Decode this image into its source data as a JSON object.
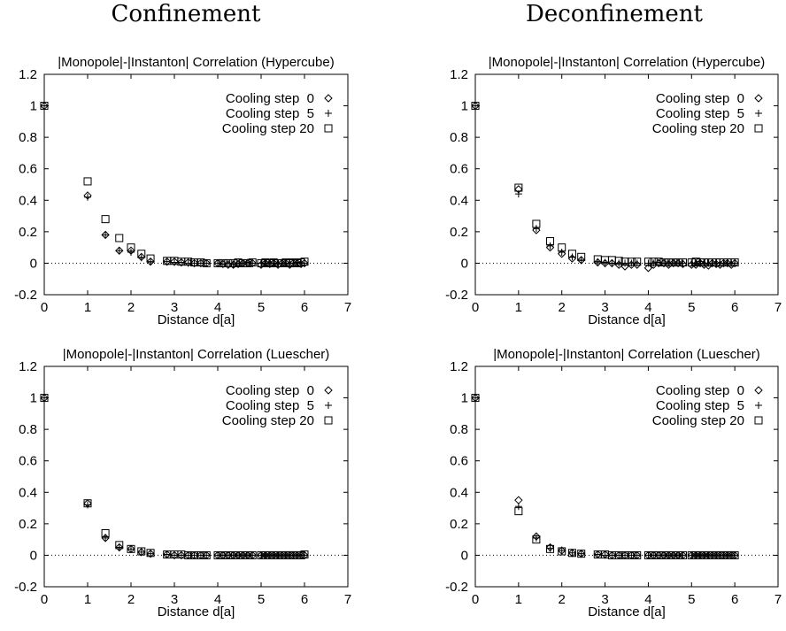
{
  "column_titles": [
    "Confinement",
    "Deconfinement"
  ],
  "chart_data": [
    {
      "type": "scatter",
      "title": "|Monopole|-|Instanton| Correlation (Hypercube)",
      "xlabel": "Distance d[a]",
      "ylabel": "",
      "xlim": [
        0,
        7
      ],
      "ylim": [
        -0.2,
        1.2
      ],
      "xticks": [
        0,
        1,
        2,
        3,
        4,
        5,
        6,
        7
      ],
      "yticks": [
        -0.2,
        0,
        0.2,
        0.4,
        0.6,
        0.8,
        1,
        1.2
      ],
      "grid": false,
      "legend_position": "top-right",
      "zero_line": true,
      "series": [
        {
          "name": "Cooling step  0",
          "marker": "diamond",
          "x": [
            0,
            1,
            1.41,
            1.73,
            2,
            2.24,
            2.45,
            2.83,
            3,
            3.16,
            3.32,
            3.46,
            3.61,
            3.74,
            4,
            4.12,
            4.24,
            4.36,
            4.47,
            4.58,
            4.69,
            4.8,
            5,
            5.1,
            5.2,
            5.29,
            5.39,
            5.48,
            5.57,
            5.66,
            5.74,
            5.83,
            5.92,
            6
          ],
          "y": [
            1.0,
            0.43,
            0.18,
            0.08,
            0.08,
            0.04,
            0.01,
            0.01,
            0.01,
            0.005,
            0.005,
            0.0,
            0.0,
            0.0,
            0.0,
            -0.005,
            -0.01,
            -0.01,
            -0.005,
            0.0,
            0.0,
            0.0,
            -0.01,
            0.0,
            -0.005,
            0.0,
            -0.01,
            0.0,
            0.0,
            -0.01,
            0.0,
            0.0,
            -0.005,
            0.0
          ]
        },
        {
          "name": "Cooling step  5",
          "marker": "plus",
          "x": [
            0,
            1,
            1.41,
            1.73,
            2,
            2.24,
            2.45,
            2.83,
            3,
            3.16,
            3.32,
            3.46,
            3.61,
            3.74,
            4,
            4.12,
            4.24,
            4.36,
            4.47,
            4.58,
            4.69,
            4.8,
            5,
            5.1,
            5.2,
            5.29,
            5.39,
            5.48,
            5.57,
            5.66,
            5.74,
            5.83,
            5.92,
            6
          ],
          "y": [
            1.0,
            0.42,
            0.18,
            0.08,
            0.07,
            0.035,
            0.01,
            0.01,
            0.005,
            0.005,
            0.0,
            0.0,
            0.0,
            0.0,
            0.0,
            -0.005,
            0.0,
            -0.005,
            0.0,
            0.0,
            0.005,
            0.0,
            0.0,
            0.0,
            0.0,
            0.0,
            0.0,
            0.0,
            0.0,
            0.0,
            0.0,
            0.005,
            0.0,
            0.0
          ]
        },
        {
          "name": "Cooling step 20",
          "marker": "square",
          "x": [
            0,
            1,
            1.41,
            1.73,
            2,
            2.24,
            2.45,
            2.83,
            3,
            3.16,
            3.32,
            3.46,
            3.61,
            3.74,
            4,
            4.12,
            4.24,
            4.36,
            4.47,
            4.58,
            4.69,
            4.8,
            5,
            5.1,
            5.2,
            5.29,
            5.39,
            5.48,
            5.57,
            5.66,
            5.74,
            5.83,
            5.92,
            6
          ],
          "y": [
            1.0,
            0.52,
            0.28,
            0.16,
            0.1,
            0.06,
            0.03,
            0.015,
            0.015,
            0.01,
            0.01,
            0.005,
            0.005,
            0.0,
            0.0,
            0.0,
            0.0,
            0.0,
            0.005,
            0.0,
            0.0,
            0.005,
            0.0,
            0.005,
            0.0,
            0.005,
            0.0,
            0.0,
            0.005,
            0.0,
            0.005,
            0.0,
            0.005,
            0.01
          ]
        }
      ]
    },
    {
      "type": "scatter",
      "title": "|Monopole|-|Instanton| Correlation (Hypercube)",
      "xlabel": "Distance d[a]",
      "ylabel": "",
      "xlim": [
        0,
        7
      ],
      "ylim": [
        -0.2,
        1.2
      ],
      "xticks": [
        0,
        1,
        2,
        3,
        4,
        5,
        6,
        7
      ],
      "yticks": [
        -0.2,
        0,
        0.2,
        0.4,
        0.6,
        0.8,
        1,
        1.2
      ],
      "grid": false,
      "legend_position": "top-right",
      "zero_line": true,
      "series": [
        {
          "name": "Cooling step  0",
          "marker": "diamond",
          "x": [
            0,
            1,
            1.41,
            1.73,
            2,
            2.24,
            2.45,
            2.83,
            3,
            3.16,
            3.32,
            3.46,
            3.61,
            3.74,
            4,
            4.12,
            4.24,
            4.36,
            4.47,
            4.58,
            4.69,
            4.8,
            5,
            5.1,
            5.2,
            5.29,
            5.39,
            5.48,
            5.57,
            5.66,
            5.74,
            5.83,
            5.92,
            6
          ],
          "y": [
            1.0,
            0.47,
            0.21,
            0.1,
            0.06,
            0.03,
            0.02,
            0.005,
            0.0,
            0.0,
            -0.01,
            -0.02,
            -0.01,
            -0.01,
            -0.03,
            -0.01,
            0.0,
            0.0,
            -0.01,
            0.0,
            0.0,
            -0.005,
            -0.01,
            -0.01,
            0.0,
            -0.01,
            -0.015,
            0.0,
            -0.005,
            -0.01,
            0.0,
            0.0,
            -0.01,
            0.0
          ]
        },
        {
          "name": "Cooling step  5",
          "marker": "plus",
          "x": [
            0,
            1,
            1.41,
            1.73,
            2,
            2.24,
            2.45,
            2.83,
            3,
            3.16,
            3.32,
            3.46,
            3.61,
            3.74,
            4,
            4.12,
            4.24,
            4.36,
            4.47,
            4.58,
            4.69,
            4.8,
            5,
            5.1,
            5.2,
            5.29,
            5.39,
            5.48,
            5.57,
            5.66,
            5.74,
            5.83,
            5.92,
            6
          ],
          "y": [
            1.0,
            0.44,
            0.22,
            0.11,
            0.07,
            0.04,
            0.02,
            0.01,
            0.005,
            0.0,
            0.0,
            0.0,
            0.0,
            0.0,
            0.0,
            0.0,
            0.005,
            0.0,
            0.0,
            0.0,
            0.0,
            0.0,
            0.0,
            0.0,
            0.01,
            0.0,
            0.0,
            0.0,
            0.0,
            0.0,
            0.0,
            0.0,
            0.0,
            0.0
          ]
        },
        {
          "name": "Cooling step 20",
          "marker": "square",
          "x": [
            0,
            1,
            1.41,
            1.73,
            2,
            2.24,
            2.45,
            2.83,
            3,
            3.16,
            3.32,
            3.46,
            3.61,
            3.74,
            4,
            4.12,
            4.24,
            4.36,
            4.47,
            4.58,
            4.69,
            4.8,
            5,
            5.1,
            5.2,
            5.29,
            5.39,
            5.48,
            5.57,
            5.66,
            5.74,
            5.83,
            5.92,
            6
          ],
          "y": [
            1.0,
            0.48,
            0.25,
            0.14,
            0.1,
            0.06,
            0.04,
            0.025,
            0.02,
            0.02,
            0.015,
            0.01,
            0.01,
            0.01,
            0.01,
            0.01,
            0.01,
            0.005,
            0.005,
            0.005,
            0.005,
            0.005,
            0.005,
            0.01,
            0.005,
            0.005,
            0.005,
            0.005,
            0.005,
            0.005,
            0.005,
            0.005,
            0.005,
            0.005
          ]
        }
      ]
    },
    {
      "type": "scatter",
      "title": "|Monopole|-|Instanton| Correlation (Luescher)",
      "xlabel": "Distance d[a]",
      "ylabel": "",
      "xlim": [
        0,
        7
      ],
      "ylim": [
        -0.2,
        1.2
      ],
      "xticks": [
        0,
        1,
        2,
        3,
        4,
        5,
        6,
        7
      ],
      "yticks": [
        -0.2,
        0,
        0.2,
        0.4,
        0.6,
        0.8,
        1,
        1.2
      ],
      "grid": false,
      "legend_position": "top-right",
      "zero_line": true,
      "series": [
        {
          "name": "Cooling step  0",
          "marker": "diamond",
          "x": [
            0,
            1,
            1.41,
            1.73,
            2,
            2.24,
            2.45,
            2.83,
            3,
            3.16,
            3.32,
            3.46,
            3.61,
            3.74,
            4,
            4.12,
            4.24,
            4.36,
            4.47,
            4.58,
            4.69,
            4.8,
            5,
            5.1,
            5.2,
            5.29,
            5.39,
            5.48,
            5.57,
            5.66,
            5.74,
            5.83,
            5.92,
            6
          ],
          "y": [
            1.0,
            0.33,
            0.11,
            0.05,
            0.04,
            0.02,
            0.01,
            0.005,
            0.0,
            0.0,
            0.0,
            0.0,
            0.0,
            0.0,
            0.0,
            0.0,
            0.0,
            0.0,
            0.0,
            0.0,
            0.0,
            0.0,
            0.0,
            0.0,
            0.0,
            0.0,
            0.0,
            0.0,
            0.0,
            0.0,
            0.0,
            0.0,
            0.0,
            0.0
          ]
        },
        {
          "name": "Cooling step  5",
          "marker": "plus",
          "x": [
            0,
            1,
            1.41,
            1.73,
            2,
            2.24,
            2.45,
            2.83,
            3,
            3.16,
            3.32,
            3.46,
            3.61,
            3.74,
            4,
            4.12,
            4.24,
            4.36,
            4.47,
            4.58,
            4.69,
            4.8,
            5,
            5.1,
            5.2,
            5.29,
            5.39,
            5.48,
            5.57,
            5.66,
            5.74,
            5.83,
            5.92,
            6
          ],
          "y": [
            1.0,
            0.32,
            0.11,
            0.05,
            0.04,
            0.02,
            0.01,
            0.005,
            0.0,
            0.0,
            0.0,
            0.0,
            0.0,
            0.0,
            0.0,
            0.0,
            0.0,
            0.0,
            0.0,
            0.0,
            0.0,
            0.0,
            0.0,
            0.0,
            0.0,
            0.0,
            0.0,
            0.0,
            0.0,
            0.0,
            0.0,
            0.0,
            0.0,
            0.0
          ]
        },
        {
          "name": "Cooling step 20",
          "marker": "square",
          "x": [
            0,
            1,
            1.41,
            1.73,
            2,
            2.24,
            2.45,
            2.83,
            3,
            3.16,
            3.32,
            3.46,
            3.61,
            3.74,
            4,
            4.12,
            4.24,
            4.36,
            4.47,
            4.58,
            4.69,
            4.8,
            5,
            5.1,
            5.2,
            5.29,
            5.39,
            5.48,
            5.57,
            5.66,
            5.74,
            5.83,
            5.92,
            6
          ],
          "y": [
            1.0,
            0.33,
            0.14,
            0.065,
            0.04,
            0.025,
            0.015,
            0.005,
            0.005,
            0.005,
            0.0,
            0.0,
            0.0,
            0.0,
            0.0,
            0.0,
            0.0,
            0.0,
            0.0,
            0.0,
            0.0,
            0.0,
            0.0,
            0.0,
            0.0,
            0.0,
            0.0,
            0.0,
            0.0,
            0.0,
            0.0,
            0.0,
            0.0,
            0.005
          ]
        }
      ]
    },
    {
      "type": "scatter",
      "title": "|Monopole|-|Instanton| Correlation (Luescher)",
      "xlabel": "Distance d[a]",
      "ylabel": "",
      "xlim": [
        0,
        7
      ],
      "ylim": [
        -0.2,
        1.2
      ],
      "xticks": [
        0,
        1,
        2,
        3,
        4,
        5,
        6,
        7
      ],
      "yticks": [
        -0.2,
        0,
        0.2,
        0.4,
        0.6,
        0.8,
        1,
        1.2
      ],
      "grid": false,
      "legend_position": "top-right",
      "zero_line": true,
      "series": [
        {
          "name": "Cooling step  0",
          "marker": "diamond",
          "x": [
            0,
            1,
            1.41,
            1.73,
            2,
            2.24,
            2.45,
            2.83,
            3,
            3.16,
            3.32,
            3.46,
            3.61,
            3.74,
            4,
            4.12,
            4.24,
            4.36,
            4.47,
            4.58,
            4.69,
            4.8,
            5,
            5.1,
            5.2,
            5.29,
            5.39,
            5.48,
            5.57,
            5.66,
            5.74,
            5.83,
            5.92,
            6
          ],
          "y": [
            1.0,
            0.35,
            0.12,
            0.05,
            0.03,
            0.015,
            0.01,
            0.005,
            0.005,
            0.0,
            0.0,
            0.0,
            0.0,
            0.0,
            0.0,
            0.0,
            0.0,
            0.0,
            0.0,
            0.0,
            0.0,
            0.0,
            0.0,
            0.0,
            0.0,
            0.0,
            0.0,
            0.0,
            0.0,
            0.0,
            0.0,
            0.0,
            0.0,
            0.0
          ]
        },
        {
          "name": "Cooling step  5",
          "marker": "plus",
          "x": [
            0,
            1,
            1.41,
            1.73,
            2,
            2.24,
            2.45,
            2.83,
            3,
            3.16,
            3.32,
            3.46,
            3.61,
            3.74,
            4,
            4.12,
            4.24,
            4.36,
            4.47,
            4.58,
            4.69,
            4.8,
            5,
            5.1,
            5.2,
            5.29,
            5.39,
            5.48,
            5.57,
            5.66,
            5.74,
            5.83,
            5.92,
            6
          ],
          "y": [
            1.0,
            0.31,
            0.11,
            0.045,
            0.03,
            0.015,
            0.01,
            0.005,
            0.0,
            0.0,
            0.0,
            0.0,
            0.0,
            0.0,
            0.0,
            0.0,
            0.0,
            0.0,
            0.0,
            0.0,
            0.0,
            0.0,
            0.0,
            0.0,
            0.0,
            0.0,
            0.0,
            0.0,
            0.0,
            0.0,
            0.0,
            0.0,
            0.0,
            0.0
          ]
        },
        {
          "name": "Cooling step 20",
          "marker": "square",
          "x": [
            0,
            1,
            1.41,
            1.73,
            2,
            2.24,
            2.45,
            2.83,
            3,
            3.16,
            3.32,
            3.46,
            3.61,
            3.74,
            4,
            4.12,
            4.24,
            4.36,
            4.47,
            4.58,
            4.69,
            4.8,
            5,
            5.1,
            5.2,
            5.29,
            5.39,
            5.48,
            5.57,
            5.66,
            5.74,
            5.83,
            5.92,
            6
          ],
          "y": [
            1.0,
            0.28,
            0.1,
            0.04,
            0.025,
            0.015,
            0.01,
            0.005,
            0.005,
            0.0,
            0.0,
            0.0,
            0.0,
            0.0,
            0.0,
            0.0,
            0.0,
            0.0,
            0.0,
            0.0,
            0.0,
            0.0,
            0.0,
            0.0,
            0.0,
            0.0,
            0.0,
            0.0,
            0.0,
            0.0,
            0.0,
            0.0,
            0.0,
            0.0
          ]
        }
      ]
    }
  ]
}
